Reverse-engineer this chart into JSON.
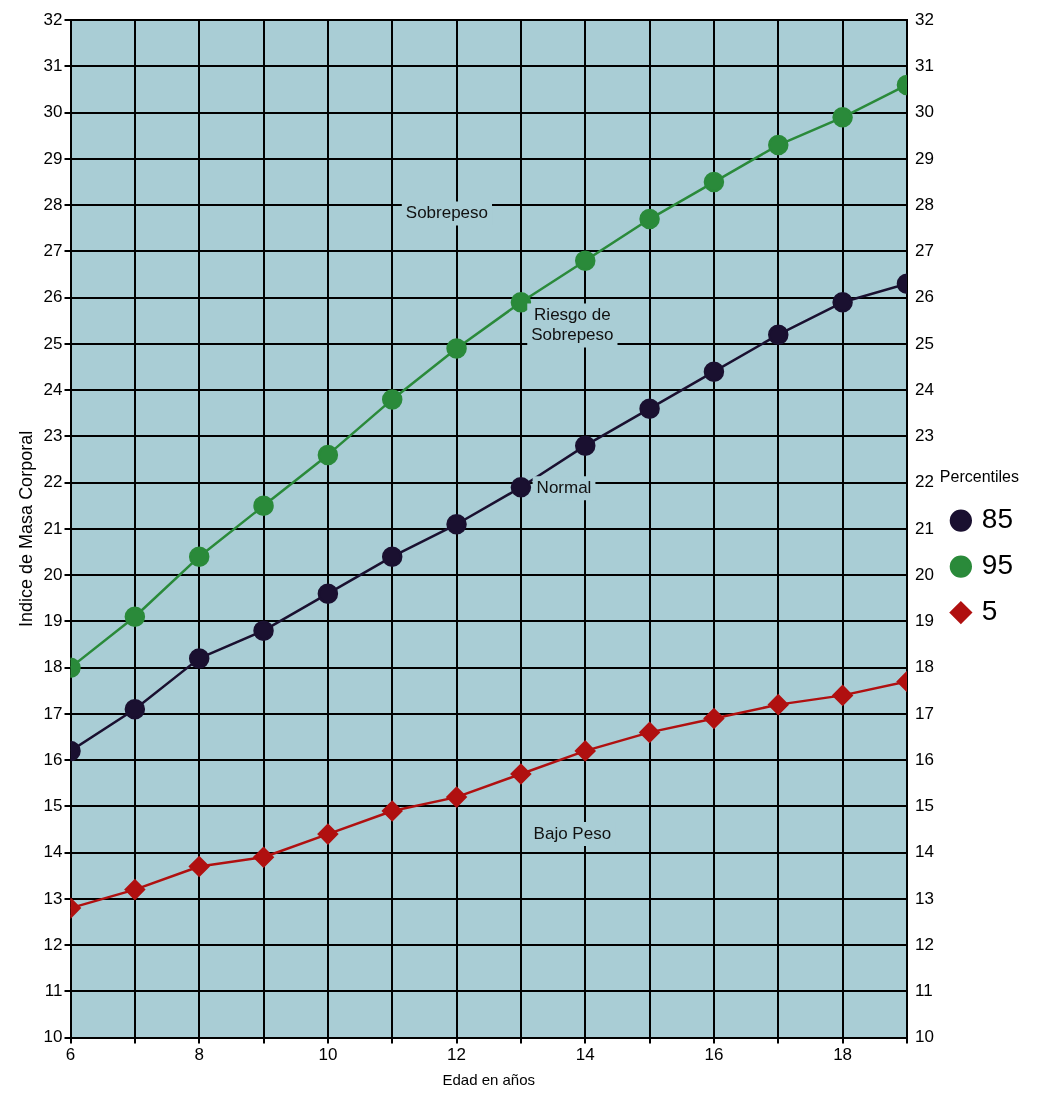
{
  "chart_data": {
    "type": "line",
    "xlabel": "Edad en años",
    "ylabel": "Indice de Masa Corporal",
    "legend_title": "Percentiles",
    "legend": "right",
    "grid": true,
    "x": [
      6,
      7,
      8,
      9,
      10,
      11,
      12,
      13,
      14,
      15,
      16,
      17,
      18,
      19
    ],
    "xlim": [
      6,
      19
    ],
    "xticks": [
      6,
      {
        "value": 7,
        "label": null
      },
      8,
      {
        "value": 9,
        "label": null
      },
      10,
      {
        "value": 11,
        "label": null
      },
      12,
      {
        "value": 13,
        "label": null
      },
      14,
      {
        "value": 15,
        "label": null
      },
      16,
      {
        "value": 17,
        "label": null
      },
      18,
      {
        "value": 19,
        "label": null
      }
    ],
    "ylim": [
      10,
      32
    ],
    "yticks": [
      10,
      11,
      12,
      13,
      14,
      15,
      16,
      17,
      18,
      19,
      20,
      21,
      22,
      23,
      24,
      25,
      26,
      27,
      28,
      29,
      30,
      31,
      32
    ],
    "y2lim": [
      10,
      32
    ],
    "y2ticks": [
      10,
      11,
      12,
      13,
      14,
      15,
      16,
      17,
      18,
      19,
      20,
      21,
      22,
      23,
      24,
      25,
      26,
      27,
      28,
      29,
      30,
      31,
      32
    ],
    "series": [
      {
        "name": "85",
        "color": "#1a1030",
        "marker": "circle",
        "values": [
          16.2,
          17.1,
          18.2,
          18.8,
          19.6,
          20.4,
          21.1,
          21.9,
          22.8,
          23.6,
          24.4,
          25.2,
          25.9,
          26.3
        ]
      },
      {
        "name": "95",
        "color": "#2a8a3a",
        "marker": "circle",
        "values": [
          18.0,
          19.1,
          20.4,
          21.5,
          22.6,
          23.8,
          24.9,
          25.9,
          26.8,
          27.7,
          28.5,
          29.3,
          29.9,
          30.6
        ]
      },
      {
        "name": "5",
        "color": "#b01010",
        "marker": "diamond",
        "values": [
          12.8,
          13.2,
          13.7,
          13.9,
          14.4,
          14.9,
          15.2,
          15.7,
          16.2,
          16.6,
          16.9,
          17.2,
          17.4,
          17.7
        ]
      }
    ],
    "annotations": [
      "Sobrepeso",
      "Riesgo de\nSobrepeso",
      "Normal",
      "Bajo Peso"
    ]
  }
}
